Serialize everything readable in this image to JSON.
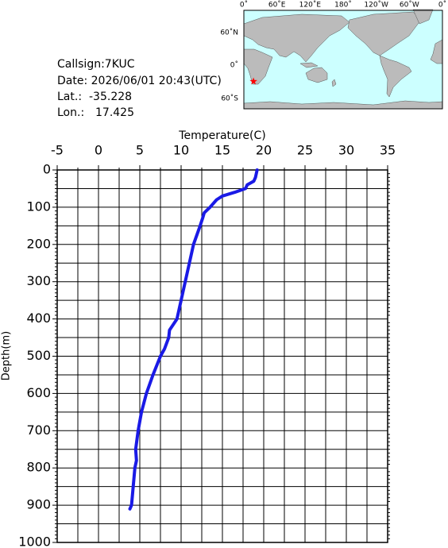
{
  "chart_data": {
    "type": "line",
    "x_label": "Temperature(C)",
    "y_label": "Depth(m)",
    "x": [
      19.2,
      19.0,
      18.8,
      18.0,
      17.8,
      16.5,
      15.0,
      14.3,
      13.5,
      12.8,
      12.6,
      12.3,
      11.5,
      11.0,
      10.5,
      10.0,
      9.5,
      8.6,
      8.5,
      8.0,
      7.5,
      6.6,
      5.8,
      5.2,
      4.8,
      4.5,
      4.6,
      4.4,
      4.2,
      4.0,
      3.8
    ],
    "values": [
      0,
      20,
      30,
      40,
      50,
      60,
      70,
      80,
      100,
      115,
      130,
      150,
      200,
      250,
      300,
      350,
      400,
      430,
      450,
      480,
      500,
      550,
      600,
      650,
      700,
      750,
      780,
      800,
      850,
      900,
      910
    ],
    "color": "#1a1ae6",
    "xlim": [
      -5,
      35
    ],
    "xticks": [
      -5,
      0,
      5,
      10,
      15,
      20,
      25,
      30,
      35
    ],
    "ylim": [
      0,
      1000
    ],
    "yticks": [
      0,
      100,
      200,
      300,
      400,
      500,
      600,
      700,
      800,
      900,
      1000
    ],
    "y_reversed": true,
    "grid": true
  },
  "info": {
    "callsign": "Callsign:7KUC",
    "date": "Date:  2026/06/01 20:43(UTC)",
    "lat": {
      "label": "Lat.:",
      "value": -35.228
    },
    "lon": {
      "label": "Lon.:",
      "value": 17.425
    }
  },
  "map": {
    "lon_labels": [
      "0˚",
      "60˚E",
      "120˚E",
      "180˚",
      "120˚W",
      "60˚W",
      "0˚"
    ],
    "lat_labels": [
      "60˚N",
      "0˚",
      "60˚S"
    ]
  }
}
